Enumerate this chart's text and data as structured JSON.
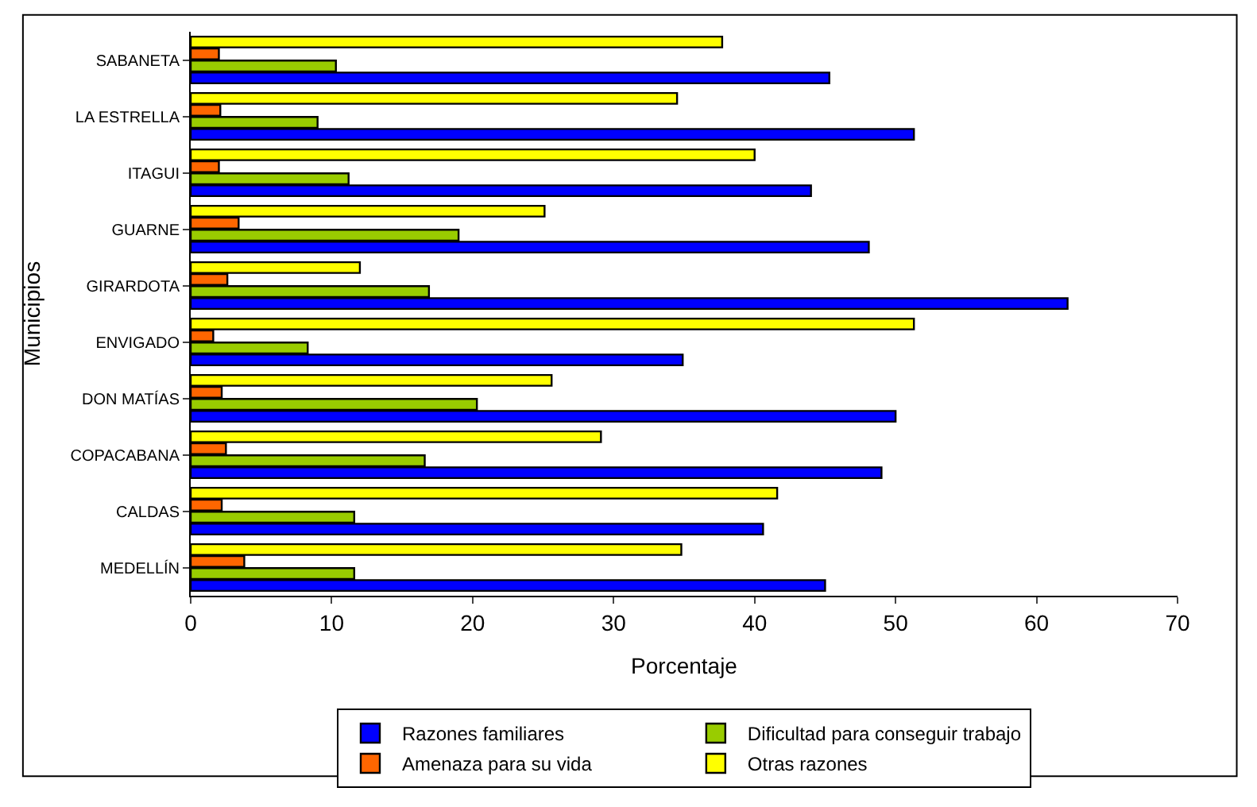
{
  "chart_data": {
    "type": "bar",
    "orientation": "horizontal",
    "xlabel": "Porcentaje",
    "ylabel": "Municipios",
    "categories": [
      "SABANETA",
      "LA ESTRELLA",
      "ITAGUI",
      "GUARNE",
      "GIRARDOTA",
      "ENVIGADO",
      "DON MATÍAS",
      "COPACABANA",
      "CALDAS",
      "MEDELLÍN"
    ],
    "series": [
      {
        "name": "Razones familiares",
        "color": "#0000ff",
        "values": [
          45.3,
          51.3,
          44.0,
          48.1,
          62.2,
          34.9,
          50.0,
          49.0,
          40.6,
          45.0
        ]
      },
      {
        "name": "Dificultad para conseguir trabajo",
        "color": "#99cc00",
        "values": [
          10.3,
          9.0,
          11.2,
          19.0,
          16.9,
          8.3,
          20.3,
          16.6,
          11.6,
          11.6
        ]
      },
      {
        "name": "Amenaza para su vida",
        "color": "#ff6600",
        "values": [
          2.0,
          2.1,
          2.0,
          3.4,
          2.6,
          1.6,
          2.2,
          2.5,
          2.2,
          3.8
        ]
      },
      {
        "name": "Otras razones",
        "color": "#ffff00",
        "values": [
          37.7,
          34.5,
          40.0,
          25.1,
          12.0,
          51.3,
          25.6,
          29.1,
          41.6,
          34.8
        ]
      }
    ],
    "xlim": [
      0,
      70
    ],
    "xticks": [
      0,
      10,
      20,
      30,
      40,
      50,
      60,
      70
    ],
    "grid": false,
    "legend": "bottom"
  }
}
